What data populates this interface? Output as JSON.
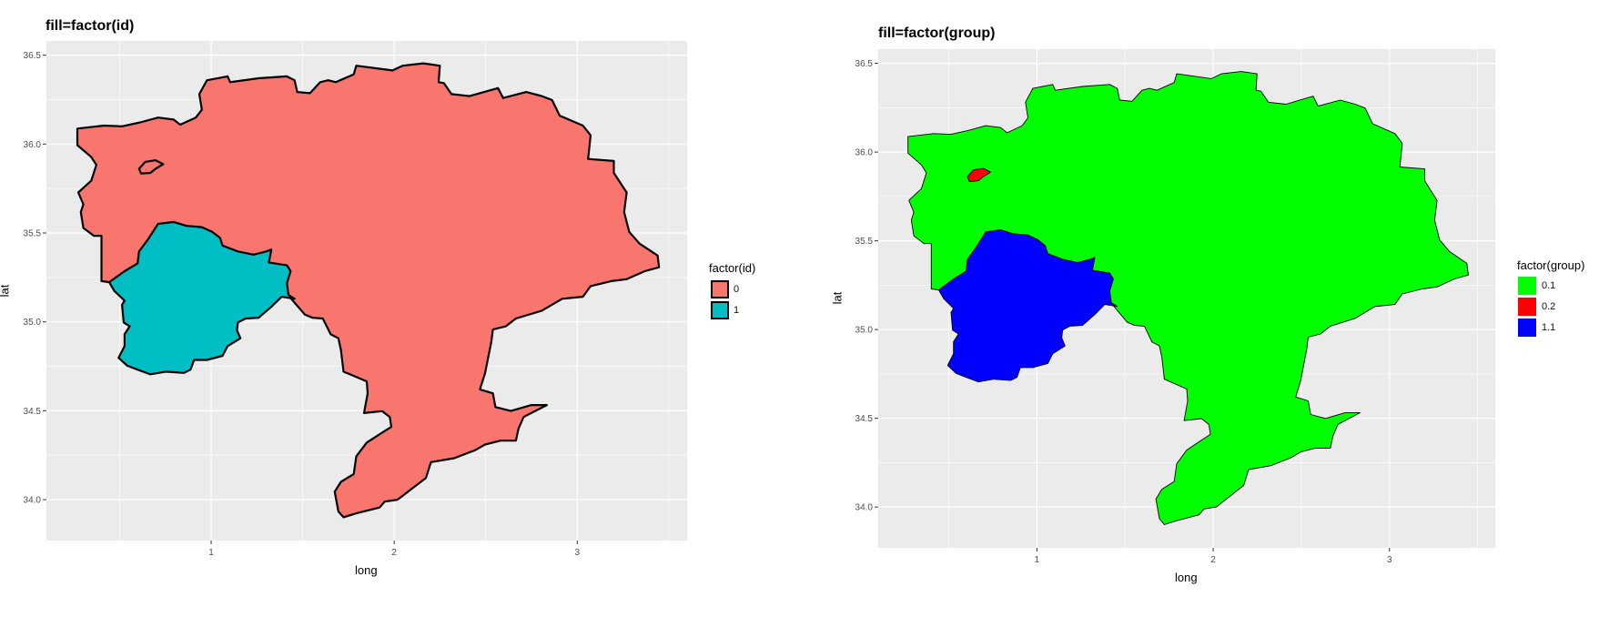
{
  "map_polygons": [
    {
      "group": "0.1",
      "id": "0",
      "coords": [
        [
          0.269,
          36.087
        ],
        [
          0.415,
          36.104
        ],
        [
          0.513,
          36.1
        ],
        [
          0.612,
          36.122
        ],
        [
          0.71,
          36.149
        ],
        [
          0.795,
          36.138
        ],
        [
          0.831,
          36.109
        ],
        [
          0.916,
          36.149
        ],
        [
          0.949,
          36.193
        ],
        [
          0.935,
          36.281
        ],
        [
          0.977,
          36.359
        ],
        [
          1.09,
          36.381
        ],
        [
          1.104,
          36.348
        ],
        [
          1.259,
          36.37
        ],
        [
          1.413,
          36.381
        ],
        [
          1.456,
          36.359
        ],
        [
          1.47,
          36.293
        ],
        [
          1.54,
          36.286
        ],
        [
          1.596,
          36.348
        ],
        [
          1.639,
          36.359
        ],
        [
          1.681,
          36.348
        ],
        [
          1.779,
          36.392
        ],
        [
          1.793,
          36.441
        ],
        [
          1.99,
          36.414
        ],
        [
          2.046,
          36.441
        ],
        [
          2.159,
          36.454
        ],
        [
          2.249,
          36.441
        ],
        [
          2.243,
          36.348
        ],
        [
          2.271,
          36.343
        ],
        [
          2.313,
          36.281
        ],
        [
          2.412,
          36.27
        ],
        [
          2.567,
          36.315
        ],
        [
          2.595,
          36.259
        ],
        [
          2.721,
          36.293
        ],
        [
          2.806,
          36.27
        ],
        [
          2.862,
          36.248
        ],
        [
          2.904,
          36.16
        ],
        [
          3.031,
          36.104
        ],
        [
          3.073,
          36.049
        ],
        [
          3.059,
          35.916
        ],
        [
          3.2,
          35.905
        ],
        [
          3.2,
          35.838
        ],
        [
          3.27,
          35.728
        ],
        [
          3.256,
          35.617
        ],
        [
          3.284,
          35.506
        ],
        [
          3.34,
          35.44
        ],
        [
          3.439,
          35.373
        ],
        [
          3.447,
          35.307
        ],
        [
          3.369,
          35.285
        ],
        [
          3.27,
          35.24
        ],
        [
          3.186,
          35.229
        ],
        [
          3.073,
          35.201
        ],
        [
          3.031,
          35.141
        ],
        [
          2.918,
          35.13
        ],
        [
          2.806,
          35.063
        ],
        [
          2.665,
          35.019
        ],
        [
          2.609,
          34.975
        ],
        [
          2.539,
          34.957
        ],
        [
          2.53,
          34.886
        ],
        [
          2.496,
          34.709
        ],
        [
          2.468,
          34.62
        ],
        [
          2.539,
          34.598
        ],
        [
          2.553,
          34.521
        ],
        [
          2.637,
          34.499
        ],
        [
          2.75,
          34.532
        ],
        [
          2.834,
          34.532
        ],
        [
          2.707,
          34.465
        ],
        [
          2.679,
          34.399
        ],
        [
          2.665,
          34.332
        ],
        [
          2.581,
          34.332
        ],
        [
          2.496,
          34.31
        ],
        [
          2.44,
          34.277
        ],
        [
          2.328,
          34.233
        ],
        [
          2.201,
          34.211
        ],
        [
          2.173,
          34.122
        ],
        [
          2.103,
          34.067
        ],
        [
          2.018,
          34.0
        ],
        [
          1.948,
          33.989
        ],
        [
          1.92,
          33.956
        ],
        [
          1.793,
          33.923
        ],
        [
          1.723,
          33.901
        ],
        [
          1.695,
          33.934
        ],
        [
          1.675,
          34.045
        ],
        [
          1.709,
          34.1
        ],
        [
          1.779,
          34.144
        ],
        [
          1.793,
          34.244
        ],
        [
          1.85,
          34.321
        ],
        [
          1.934,
          34.377
        ],
        [
          1.984,
          34.41
        ],
        [
          1.976,
          34.465
        ],
        [
          1.934,
          34.498
        ],
        [
          1.835,
          34.487
        ],
        [
          1.855,
          34.598
        ],
        [
          1.85,
          34.665
        ],
        [
          1.723,
          34.72
        ],
        [
          1.709,
          34.842
        ],
        [
          1.695,
          34.908
        ],
        [
          1.653,
          34.93
        ],
        [
          1.61,
          35.019
        ],
        [
          1.554,
          35.023
        ],
        [
          1.512,
          35.041
        ],
        [
          1.456,
          35.108
        ],
        [
          1.428,
          35.141
        ],
        [
          0.443,
          35.223
        ],
        [
          0.401,
          35.229
        ],
        [
          0.401,
          35.484
        ],
        [
          0.359,
          35.484
        ],
        [
          0.302,
          35.528
        ],
        [
          0.288,
          35.617
        ],
        [
          0.302,
          35.661
        ],
        [
          0.274,
          35.728
        ],
        [
          0.345,
          35.794
        ],
        [
          0.373,
          35.883
        ],
        [
          0.345,
          35.927
        ],
        [
          0.269,
          35.994
        ]
      ]
    },
    {
      "group": "0.2",
      "id": "0",
      "coords": [
        [
          0.606,
          35.861
        ],
        [
          0.64,
          35.9
        ],
        [
          0.696,
          35.909
        ],
        [
          0.738,
          35.887
        ],
        [
          0.696,
          35.861
        ],
        [
          0.668,
          35.838
        ],
        [
          0.617,
          35.834
        ]
      ]
    },
    {
      "group": "1.1",
      "id": "1",
      "coords": [
        [
          0.443,
          35.223
        ],
        [
          0.527,
          35.285
        ],
        [
          0.598,
          35.329
        ],
        [
          0.606,
          35.396
        ],
        [
          0.654,
          35.462
        ],
        [
          0.71,
          35.551
        ],
        [
          0.795,
          35.562
        ],
        [
          0.865,
          35.54
        ],
        [
          0.949,
          35.533
        ],
        [
          1.006,
          35.506
        ],
        [
          1.048,
          35.473
        ],
        [
          1.062,
          35.429
        ],
        [
          1.146,
          35.396
        ],
        [
          1.231,
          35.378
        ],
        [
          1.301,
          35.396
        ],
        [
          1.329,
          35.407
        ],
        [
          1.315,
          35.334
        ],
        [
          1.414,
          35.318
        ],
        [
          1.434,
          35.285
        ],
        [
          1.414,
          35.218
        ],
        [
          1.422,
          35.152
        ],
        [
          1.456,
          35.13
        ],
        [
          1.385,
          35.141
        ],
        [
          1.329,
          35.085
        ],
        [
          1.259,
          35.023
        ],
        [
          1.188,
          35.019
        ],
        [
          1.146,
          34.997
        ],
        [
          1.141,
          34.953
        ],
        [
          1.16,
          34.908
        ],
        [
          1.09,
          34.864
        ],
        [
          1.062,
          34.809
        ],
        [
          0.977,
          34.786
        ],
        [
          0.907,
          34.786
        ],
        [
          0.887,
          34.731
        ],
        [
          0.851,
          34.713
        ],
        [
          0.753,
          34.72
        ],
        [
          0.668,
          34.705
        ],
        [
          0.598,
          34.731
        ],
        [
          0.542,
          34.753
        ],
        [
          0.494,
          34.798
        ],
        [
          0.527,
          34.864
        ],
        [
          0.527,
          34.931
        ],
        [
          0.555,
          34.975
        ],
        [
          0.522,
          34.997
        ],
        [
          0.513,
          35.096
        ],
        [
          0.527,
          35.119
        ],
        [
          0.471,
          35.174
        ]
      ]
    }
  ],
  "chart_data": [
    {
      "type": "map",
      "title": "fill=factor(id)",
      "xlabel": "long",
      "ylabel": "lat",
      "xlim": [
        0.1,
        3.6
      ],
      "ylim": [
        33.77,
        36.58
      ],
      "grid": true,
      "x_ticks": [
        {
          "value": 1,
          "label": "1"
        },
        {
          "value": 2,
          "label": "2"
        },
        {
          "value": 3,
          "label": "3"
        }
      ],
      "y_ticks": [
        {
          "value": 34.0,
          "label": "34.0"
        },
        {
          "value": 34.5,
          "label": "34.5"
        },
        {
          "value": 35.0,
          "label": "35.0"
        },
        {
          "value": 35.5,
          "label": "35.5"
        },
        {
          "value": 36.0,
          "label": "36.0"
        },
        {
          "value": 36.5,
          "label": "36.5"
        }
      ],
      "fill_by": "id",
      "outline": "thick black",
      "legend": {
        "title": "factor(id)",
        "placement": "right",
        "entries": [
          {
            "label": "0",
            "color": "#F8766D"
          },
          {
            "label": "1",
            "color": "#00BFC4"
          }
        ]
      }
    },
    {
      "type": "map",
      "title": "fill=factor(group)",
      "xlabel": "long",
      "ylabel": "lat",
      "xlim": [
        0.1,
        3.6
      ],
      "ylim": [
        33.77,
        36.58
      ],
      "grid": true,
      "x_ticks": [
        {
          "value": 1,
          "label": "1"
        },
        {
          "value": 2,
          "label": "2"
        },
        {
          "value": 3,
          "label": "3"
        }
      ],
      "y_ticks": [
        {
          "value": 34.0,
          "label": "34.0"
        },
        {
          "value": 34.5,
          "label": "34.5"
        },
        {
          "value": 35.0,
          "label": "35.0"
        },
        {
          "value": 35.5,
          "label": "35.5"
        },
        {
          "value": 36.0,
          "label": "36.0"
        },
        {
          "value": 36.5,
          "label": "36.5"
        }
      ],
      "fill_by": "group",
      "outline": "thin black",
      "legend": {
        "title": "factor(group)",
        "placement": "right",
        "entries": [
          {
            "label": "0.1",
            "color": "#00FF00"
          },
          {
            "label": "0.2",
            "color": "#FF0000"
          },
          {
            "label": "1.1",
            "color": "#0000FF"
          }
        ]
      }
    }
  ],
  "colors": {
    "panel_background": "#EBEBEB",
    "gridline": "#FFFFFF"
  }
}
